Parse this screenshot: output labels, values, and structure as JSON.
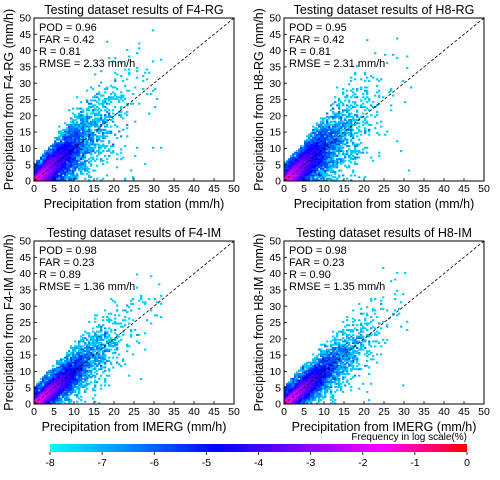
{
  "chart_data": [
    {
      "type": "heatmap",
      "title": "Testing dataset results of F4-RG",
      "xlabel": "Precipitation from station (mm/h)",
      "ylabel": "Precipitation from F4-RG (mm/h)",
      "xlim": [
        0,
        50
      ],
      "ylim": [
        0,
        50
      ],
      "xticks": [
        0,
        5,
        10,
        15,
        20,
        25,
        30,
        35,
        40,
        45,
        50
      ],
      "yticks": [
        0,
        5,
        10,
        15,
        20,
        25,
        30,
        35,
        40,
        45,
        50
      ],
      "stats": [
        "POD = 0.96",
        "FAR = 0.42",
        "R = 0.81",
        "RMSE = 2.33 mm/h"
      ],
      "spread": 0.35,
      "reference_line": "1:1 dashed diagonal"
    },
    {
      "type": "heatmap",
      "title": "Testing dataset results of H8-RG",
      "xlabel": "Precipitation from station (mm/h)",
      "ylabel": "Precipitation from H8-RG (mm/h)",
      "xlim": [
        0,
        50
      ],
      "ylim": [
        0,
        50
      ],
      "xticks": [
        0,
        5,
        10,
        15,
        20,
        25,
        30,
        35,
        40,
        45,
        50
      ],
      "yticks": [
        0,
        5,
        10,
        15,
        20,
        25,
        30,
        35,
        40,
        45,
        50
      ],
      "stats": [
        "POD = 0.95",
        "FAR = 0.42",
        "R = 0.81",
        "RMSE = 2.31 mm/h"
      ],
      "spread": 0.35,
      "reference_line": "1:1 dashed diagonal"
    },
    {
      "type": "heatmap",
      "title": "Testing dataset results of F4-IM",
      "xlabel": "Precipitation from IMERG (mm/h)",
      "ylabel": "Precipitation from F4-IM (mm/h)",
      "xlim": [
        0,
        50
      ],
      "ylim": [
        0,
        50
      ],
      "xticks": [
        0,
        5,
        10,
        15,
        20,
        25,
        30,
        35,
        40,
        45,
        50
      ],
      "yticks": [
        0,
        5,
        10,
        15,
        20,
        25,
        30,
        35,
        40,
        45,
        50
      ],
      "stats": [
        "POD = 0.98",
        "FAR = 0.23",
        "R = 0.89",
        "RMSE = 1.36 mm/h"
      ],
      "spread": 0.22,
      "reference_line": "1:1 dashed diagonal"
    },
    {
      "type": "heatmap",
      "title": "Testing dataset results of H8-IM",
      "xlabel": "Precipitation from IMERG (mm/h)",
      "ylabel": "Precipitation from H8-IM (mm/h)",
      "xlim": [
        0,
        50
      ],
      "ylim": [
        0,
        50
      ],
      "xticks": [
        0,
        5,
        10,
        15,
        20,
        25,
        30,
        35,
        40,
        45,
        50
      ],
      "yticks": [
        0,
        5,
        10,
        15,
        20,
        25,
        30,
        35,
        40,
        45,
        50
      ],
      "stats": [
        "POD = 0.98",
        "FAR = 0.23",
        "R = 0.90",
        "RMSE = 1.35 mm/h"
      ],
      "spread": 0.22,
      "reference_line": "1:1 dashed diagonal"
    }
  ],
  "colorbar": {
    "label": "Frequency in log scale(%)",
    "ticks": [
      "-8",
      "-7",
      "-6",
      "-5",
      "-4",
      "-3",
      "-2",
      "-1",
      "0"
    ],
    "range": [
      -8,
      0
    ],
    "colors": [
      "#00ffff",
      "#0080ff",
      "#0000ff",
      "#8000ff",
      "#ff00ff",
      "#ff0000"
    ]
  }
}
